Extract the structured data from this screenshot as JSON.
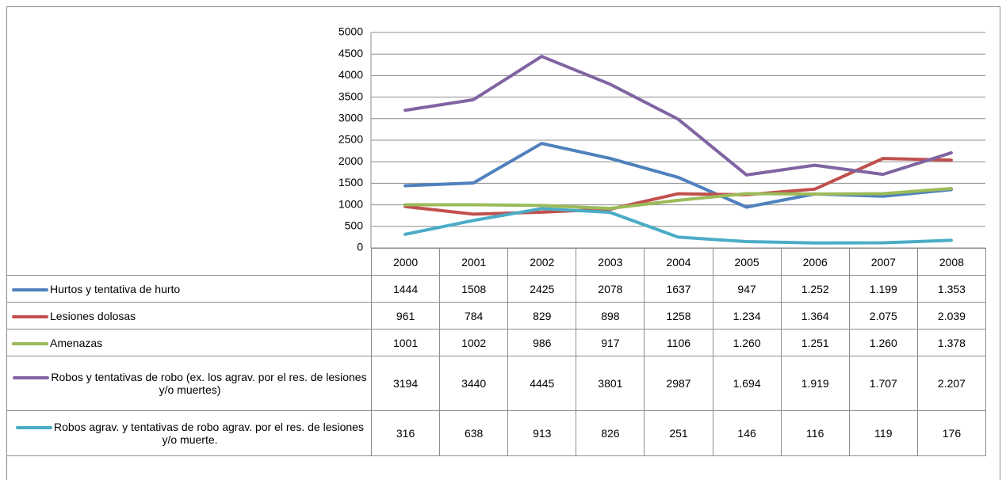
{
  "chart_data": {
    "type": "line",
    "categories": [
      "2000",
      "2001",
      "2002",
      "2003",
      "2004",
      "2005",
      "2006",
      "2007",
      "2008"
    ],
    "ylim": [
      0,
      5000
    ],
    "yticks": [
      0,
      500,
      1000,
      1500,
      2000,
      2500,
      3000,
      3500,
      4000,
      4500,
      5000
    ],
    "grid": true,
    "series": [
      {
        "name": "Hurtos y tentativa de hurto",
        "color": "#4f81bd",
        "values": [
          1444,
          1508,
          2425,
          2078,
          1637,
          947,
          1252,
          1199,
          1353
        ],
        "value_labels": [
          "1444",
          "1508",
          "2425",
          "2078",
          "1637",
          "947",
          "1.252",
          "1.199",
          "1.353"
        ]
      },
      {
        "name": "Lesiones dolosas",
        "color": "#c0504d",
        "values": [
          961,
          784,
          829,
          898,
          1258,
          1234,
          1364,
          2075,
          2039
        ],
        "value_labels": [
          "961",
          "784",
          "829",
          "898",
          "1258",
          "1.234",
          "1.364",
          "2.075",
          "2.039"
        ]
      },
      {
        "name": "Amenazas",
        "color": "#9bbb59",
        "values": [
          1001,
          1002,
          986,
          917,
          1106,
          1260,
          1251,
          1260,
          1378
        ],
        "value_labels": [
          "1001",
          "1002",
          "986",
          "917",
          "1106",
          "1.260",
          "1.251",
          "1.260",
          "1.378"
        ]
      },
      {
        "name": "Robos y tentativas de robo (ex. los agrav. por el res. de lesiones y/o muertes)",
        "color": "#8064a2",
        "values": [
          3194,
          3440,
          4445,
          3801,
          2987,
          1694,
          1919,
          1707,
          2207
        ],
        "value_labels": [
          "3194",
          "3440",
          "4445",
          "3801",
          "2987",
          "1.694",
          "1.919",
          "1.707",
          "2.207"
        ]
      },
      {
        "name": "Robos agrav. y tentativas de robo agrav. por el res. de lesiones y/o muerte.",
        "color": "#4bacc6",
        "values": [
          316,
          638,
          913,
          826,
          251,
          146,
          116,
          119,
          176
        ],
        "value_labels": [
          "316",
          "638",
          "913",
          "826",
          "251",
          "146",
          "116",
          "119",
          "176"
        ]
      }
    ]
  }
}
